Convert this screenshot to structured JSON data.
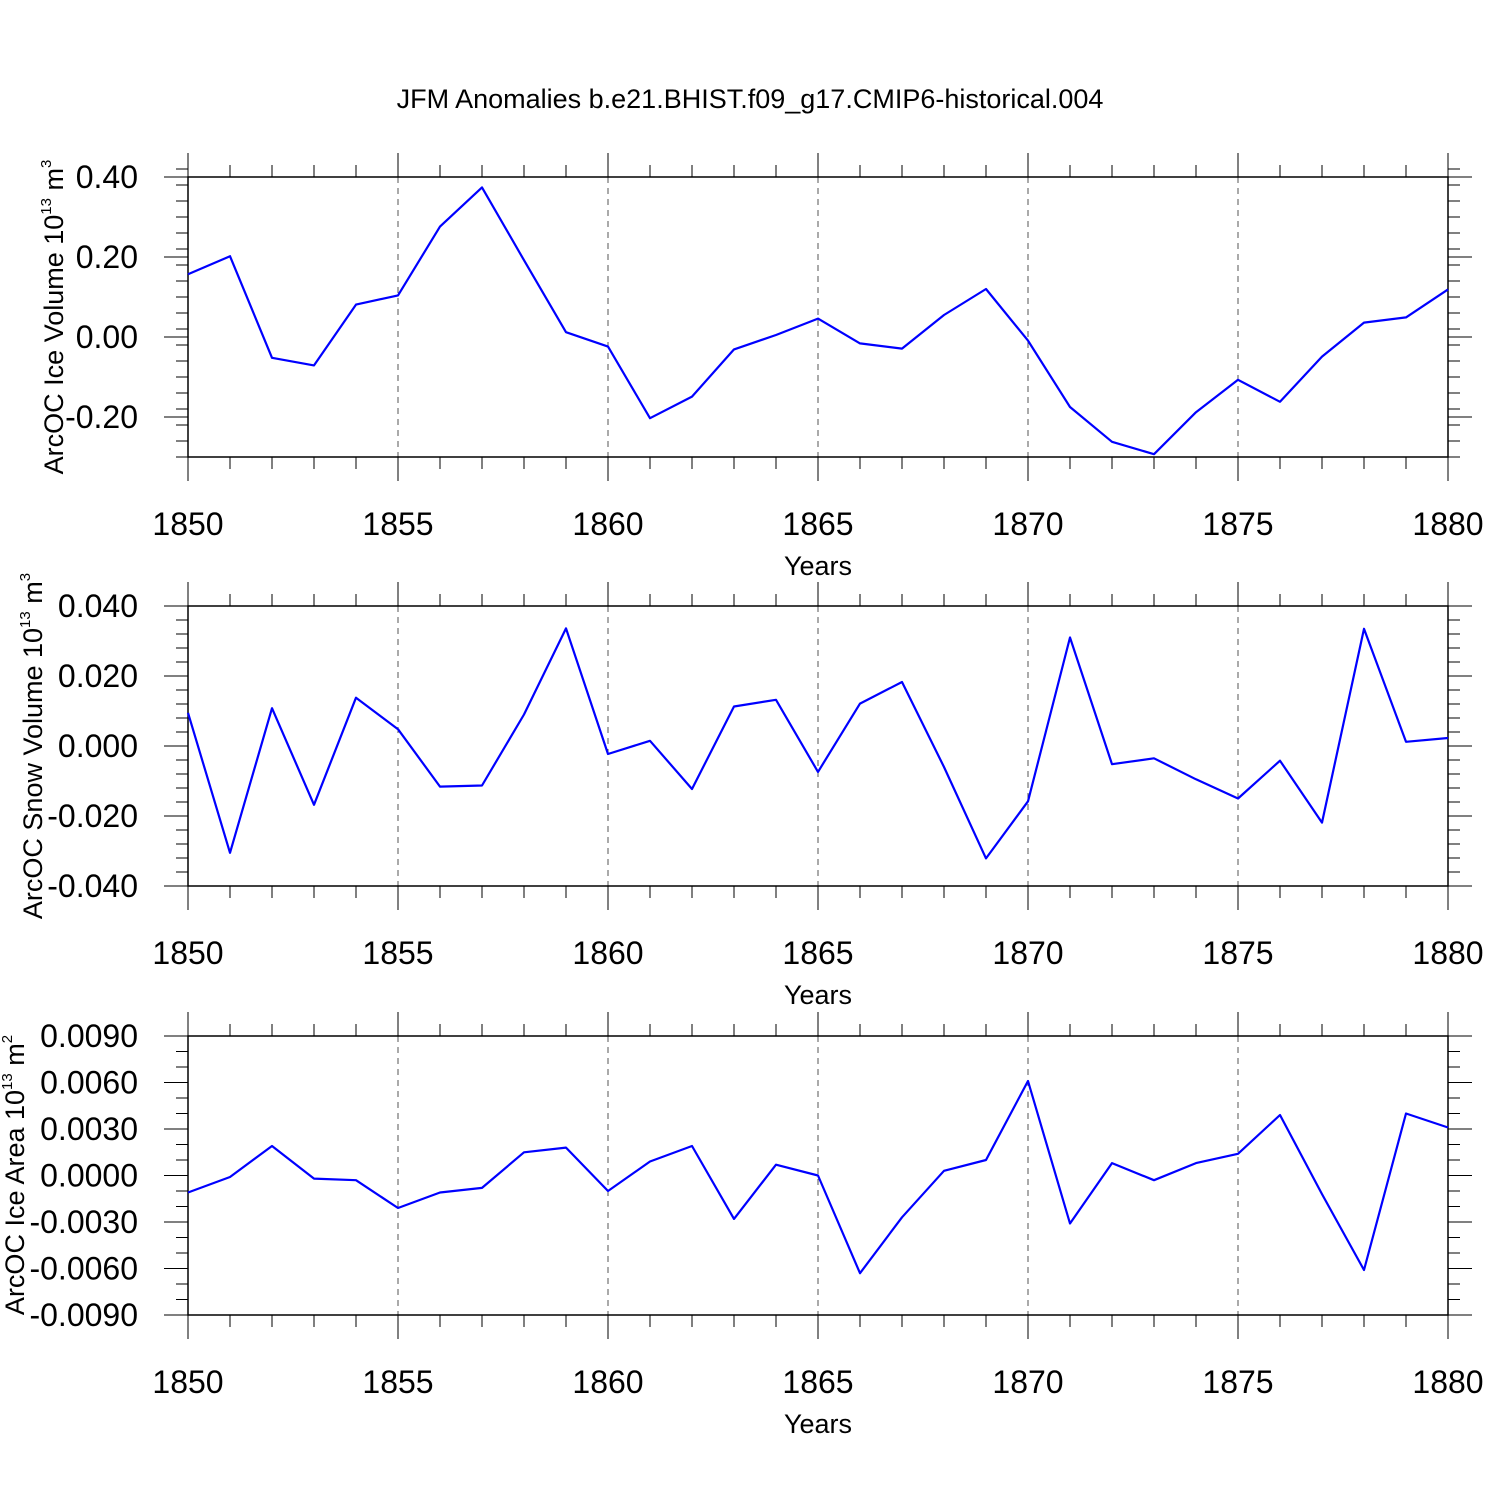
{
  "chart_data": [
    {
      "type": "line",
      "title": "JFM Anomalies b.e21.BHIST.f09_g17.CMIP6-historical.004",
      "xlabel": "Years",
      "ylabel_main": "ArcOC Ice Volume 10",
      "ylabel_exp": "13",
      "ylabel_unit": " m",
      "ylabel_unit_exp": "3",
      "xlim": [
        1850,
        1880
      ],
      "ylim": [
        -0.3,
        0.4
      ],
      "yticks": [
        -0.2,
        0.0,
        0.2,
        0.4
      ],
      "yticklabels": [
        "-0.20",
        "0.00",
        "0.20",
        "0.40"
      ],
      "yminor": 0.04,
      "xticks": [
        1850,
        1855,
        1860,
        1865,
        1870,
        1875,
        1880
      ],
      "xticklabels": [
        "1850",
        "1855",
        "1860",
        "1865",
        "1870",
        "1875",
        "1880"
      ],
      "grid": "vertical-dashed",
      "series": [
        {
          "name": "ArcOC Ice Volume",
          "color": "#0000ff",
          "x": [
            1850,
            1851,
            1852,
            1853,
            1854,
            1855,
            1856,
            1857,
            1858,
            1859,
            1860,
            1861,
            1862,
            1863,
            1864,
            1865,
            1866,
            1867,
            1868,
            1869,
            1870,
            1871,
            1872,
            1873,
            1874,
            1875,
            1876,
            1877,
            1878,
            1879,
            1880
          ],
          "values": [
            0.157,
            0.202,
            -0.052,
            -0.071,
            0.081,
            0.104,
            0.276,
            0.374,
            0.192,
            0.012,
            -0.024,
            -0.203,
            -0.149,
            -0.031,
            0.005,
            0.046,
            -0.016,
            -0.029,
            0.055,
            0.12,
            -0.009,
            -0.175,
            -0.262,
            -0.293,
            -0.188,
            -0.107,
            -0.162,
            -0.049,
            0.036,
            0.049,
            0.119
          ]
        }
      ]
    },
    {
      "type": "line",
      "title": "",
      "xlabel": "Years",
      "ylabel_main": "ArcOC Snow Volume 10",
      "ylabel_exp": "13",
      "ylabel_unit": " m",
      "ylabel_unit_exp": "3",
      "xlim": [
        1850,
        1880
      ],
      "ylim": [
        -0.04,
        0.04
      ],
      "yticks": [
        -0.04,
        -0.02,
        0.0,
        0.02,
        0.04
      ],
      "yticklabels": [
        "-0.040",
        "-0.020",
        "0.000",
        "0.020",
        "0.040"
      ],
      "yminor": 0.004,
      "xticks": [
        1850,
        1855,
        1860,
        1865,
        1870,
        1875,
        1880
      ],
      "xticklabels": [
        "1850",
        "1855",
        "1860",
        "1865",
        "1870",
        "1875",
        "1880"
      ],
      "grid": "vertical-dashed",
      "series": [
        {
          "name": "ArcOC Snow Volume",
          "color": "#0000ff",
          "x": [
            1850,
            1851,
            1852,
            1853,
            1854,
            1855,
            1856,
            1857,
            1858,
            1859,
            1860,
            1861,
            1862,
            1863,
            1864,
            1865,
            1866,
            1867,
            1868,
            1869,
            1870,
            1871,
            1872,
            1873,
            1874,
            1875,
            1876,
            1877,
            1878,
            1879,
            1880
          ],
          "values": [
            0.0095,
            -0.0305,
            0.0108,
            -0.0168,
            0.0138,
            0.0048,
            -0.0116,
            -0.0113,
            0.009,
            0.0336,
            -0.0023,
            0.0015,
            -0.0123,
            0.0113,
            0.0132,
            -0.0074,
            0.0121,
            0.0183,
            -0.006,
            -0.0321,
            -0.0158,
            0.031,
            -0.0052,
            -0.0035,
            -0.0095,
            -0.015,
            -0.0042,
            -0.0219,
            0.0335,
            0.0012,
            0.0023
          ]
        }
      ]
    },
    {
      "type": "line",
      "title": "",
      "xlabel": "Years",
      "ylabel_main": "ArcOC Ice Area 10",
      "ylabel_exp": "13",
      "ylabel_unit": " m",
      "ylabel_unit_exp": "2",
      "xlim": [
        1850,
        1880
      ],
      "ylim": [
        -0.009,
        0.009
      ],
      "yticks": [
        -0.009,
        -0.006,
        -0.003,
        0.0,
        0.003,
        0.006,
        0.009
      ],
      "yticklabels": [
        "-0.0090",
        "-0.0060",
        "-0.0030",
        "0.0000",
        "0.0030",
        "0.0060",
        "0.0090"
      ],
      "yminor": 0.001,
      "xticks": [
        1850,
        1855,
        1860,
        1865,
        1870,
        1875,
        1880
      ],
      "xticklabels": [
        "1850",
        "1855",
        "1860",
        "1865",
        "1870",
        "1875",
        "1880"
      ],
      "grid": "vertical-dashed",
      "series": [
        {
          "name": "ArcOC Ice Area",
          "color": "#0000ff",
          "x": [
            1850,
            1851,
            1852,
            1853,
            1854,
            1855,
            1856,
            1857,
            1858,
            1859,
            1860,
            1861,
            1862,
            1863,
            1864,
            1865,
            1866,
            1867,
            1868,
            1869,
            1870,
            1871,
            1872,
            1873,
            1874,
            1875,
            1876,
            1877,
            1878,
            1879,
            1880
          ],
          "values": [
            -0.0011,
            -0.0001,
            0.0019,
            -0.0002,
            -0.0003,
            -0.0021,
            -0.0011,
            -0.0008,
            0.0015,
            0.0018,
            -0.001,
            0.0009,
            0.0019,
            -0.0028,
            0.0007,
            0.0,
            -0.0063,
            -0.0027,
            0.0003,
            0.001,
            0.0061,
            -0.0031,
            0.0008,
            -0.0003,
            0.0008,
            0.0014,
            0.0039,
            -0.0012,
            -0.0061,
            0.004,
            0.0031
          ]
        }
      ]
    }
  ]
}
